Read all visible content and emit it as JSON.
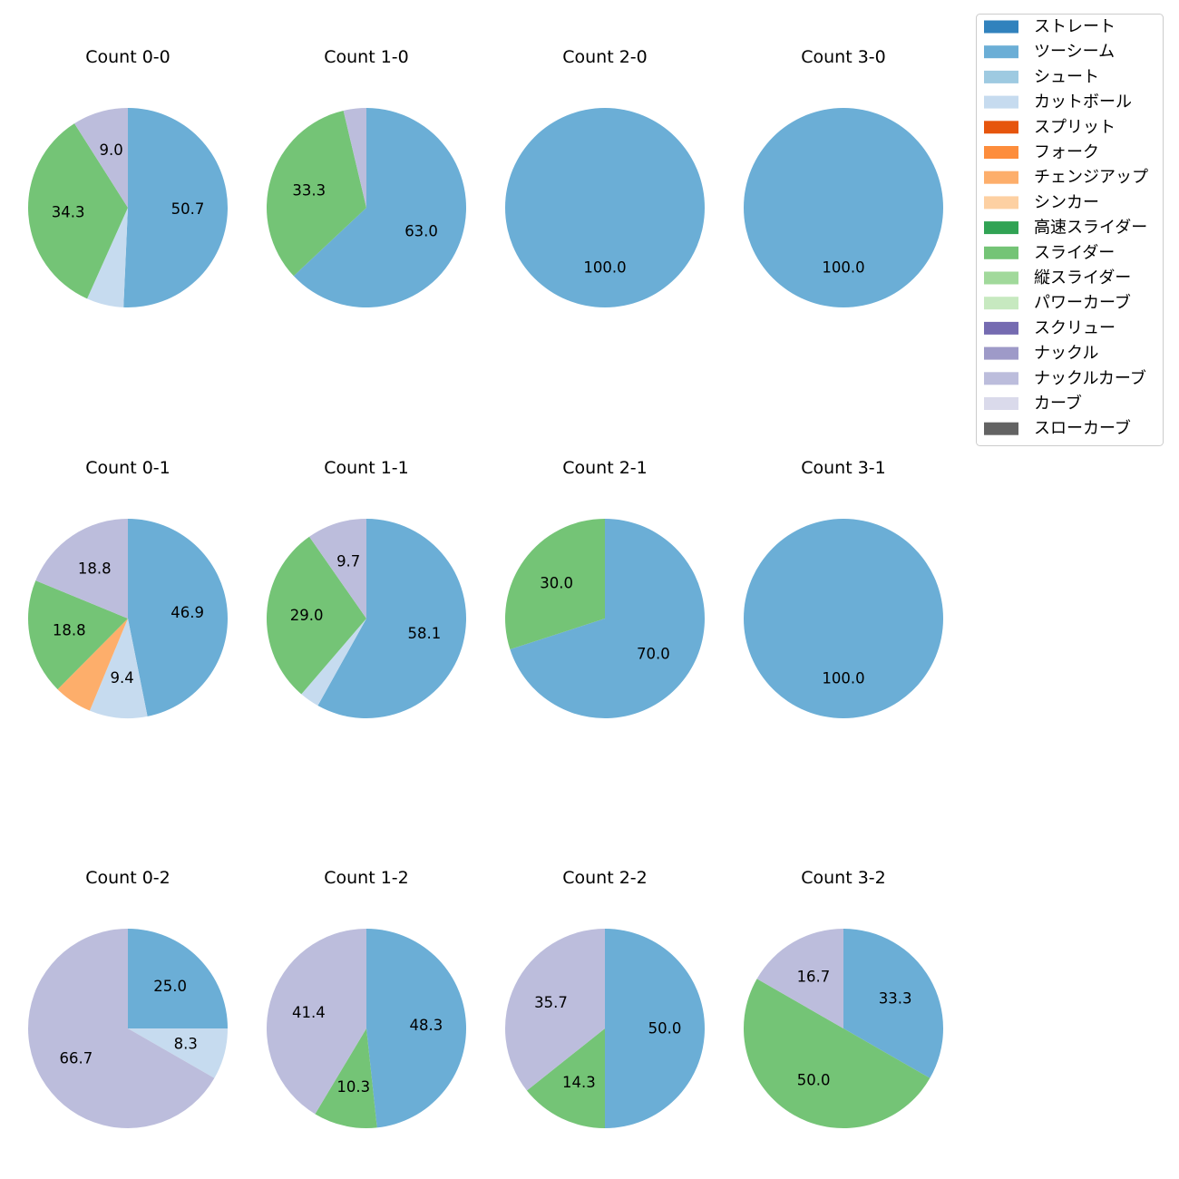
{
  "chart_data": {
    "type": "pie",
    "legend": {
      "placement": "top-right",
      "entries": [
        {
          "label": "ストレート",
          "color": "#3182bd"
        },
        {
          "label": "ツーシーム",
          "color": "#6baed6"
        },
        {
          "label": "シュート",
          "color": "#9ecae1"
        },
        {
          "label": "カットボール",
          "color": "#c6dbef"
        },
        {
          "label": "スプリット",
          "color": "#e6550d"
        },
        {
          "label": "フォーク",
          "color": "#fd8d3c"
        },
        {
          "label": "チェンジアップ",
          "color": "#fdae6b"
        },
        {
          "label": "シンカー",
          "color": "#fdd0a2"
        },
        {
          "label": "高速スライダー",
          "color": "#31a354"
        },
        {
          "label": "スライダー",
          "color": "#74c476"
        },
        {
          "label": "縦スライダー",
          "color": "#a1d99b"
        },
        {
          "label": "パワーカーブ",
          "color": "#c7e9c0"
        },
        {
          "label": "スクリュー",
          "color": "#756bb1"
        },
        {
          "label": "ナックル",
          "color": "#9e9ac8"
        },
        {
          "label": "ナックルカーブ",
          "color": "#bcbddc"
        },
        {
          "label": "カーブ",
          "color": "#dadaeb"
        },
        {
          "label": "スローカーブ",
          "color": "#636363"
        }
      ]
    },
    "pies": [
      {
        "title": "Count 0-0",
        "slices": [
          {
            "pitch": "ツーシーム",
            "value": 50.7,
            "label": "50.7"
          },
          {
            "pitch": "カットボール",
            "value": 6.0,
            "label": ""
          },
          {
            "pitch": "スライダー",
            "value": 34.3,
            "label": "34.3"
          },
          {
            "pitch": "ナックルカーブ",
            "value": 9.0,
            "label": "9.0"
          }
        ]
      },
      {
        "title": "Count 1-0",
        "slices": [
          {
            "pitch": "ツーシーム",
            "value": 63.0,
            "label": "63.0"
          },
          {
            "pitch": "スライダー",
            "value": 33.3,
            "label": "33.3"
          },
          {
            "pitch": "ナックルカーブ",
            "value": 3.7,
            "label": ""
          }
        ]
      },
      {
        "title": "Count 2-0",
        "slices": [
          {
            "pitch": "ツーシーム",
            "value": 100.0,
            "label": "100.0"
          }
        ]
      },
      {
        "title": "Count 3-0",
        "slices": [
          {
            "pitch": "ツーシーム",
            "value": 100.0,
            "label": "100.0"
          }
        ]
      },
      {
        "title": "Count 0-1",
        "slices": [
          {
            "pitch": "ツーシーム",
            "value": 46.9,
            "label": "46.9"
          },
          {
            "pitch": "カットボール",
            "value": 9.4,
            "label": "9.4"
          },
          {
            "pitch": "チェンジアップ",
            "value": 6.2,
            "label": ""
          },
          {
            "pitch": "スライダー",
            "value": 18.8,
            "label": "18.8"
          },
          {
            "pitch": "ナックルカーブ",
            "value": 18.8,
            "label": "18.8"
          }
        ]
      },
      {
        "title": "Count 1-1",
        "slices": [
          {
            "pitch": "ツーシーム",
            "value": 58.1,
            "label": "58.1"
          },
          {
            "pitch": "カットボール",
            "value": 3.2,
            "label": ""
          },
          {
            "pitch": "スライダー",
            "value": 29.0,
            "label": "29.0"
          },
          {
            "pitch": "ナックルカーブ",
            "value": 9.7,
            "label": "9.7"
          }
        ]
      },
      {
        "title": "Count 2-1",
        "slices": [
          {
            "pitch": "ツーシーム",
            "value": 70.0,
            "label": "70.0"
          },
          {
            "pitch": "スライダー",
            "value": 30.0,
            "label": "30.0"
          }
        ]
      },
      {
        "title": "Count 3-1",
        "slices": [
          {
            "pitch": "ツーシーム",
            "value": 100.0,
            "label": "100.0"
          }
        ]
      },
      {
        "title": "Count 0-2",
        "slices": [
          {
            "pitch": "ツーシーム",
            "value": 25.0,
            "label": "25.0"
          },
          {
            "pitch": "カットボール",
            "value": 8.3,
            "label": "8.3"
          },
          {
            "pitch": "ナックルカーブ",
            "value": 66.7,
            "label": "66.7"
          }
        ]
      },
      {
        "title": "Count 1-2",
        "slices": [
          {
            "pitch": "ツーシーム",
            "value": 48.3,
            "label": "48.3"
          },
          {
            "pitch": "スライダー",
            "value": 10.3,
            "label": "10.3"
          },
          {
            "pitch": "ナックルカーブ",
            "value": 41.4,
            "label": "41.4"
          }
        ]
      },
      {
        "title": "Count 2-2",
        "slices": [
          {
            "pitch": "ツーシーム",
            "value": 50.0,
            "label": "50.0"
          },
          {
            "pitch": "スライダー",
            "value": 14.3,
            "label": "14.3"
          },
          {
            "pitch": "ナックルカーブ",
            "value": 35.7,
            "label": "35.7"
          }
        ]
      },
      {
        "title": "Count 3-2",
        "slices": [
          {
            "pitch": "ツーシーム",
            "value": 33.3,
            "label": "33.3"
          },
          {
            "pitch": "スライダー",
            "value": 50.0,
            "label": "50.0"
          },
          {
            "pitch": "ナックルカーブ",
            "value": 16.7,
            "label": "16.7"
          }
        ]
      }
    ]
  }
}
